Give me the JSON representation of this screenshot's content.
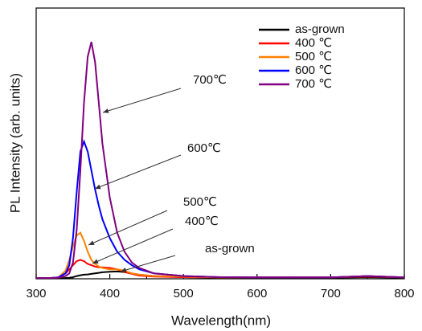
{
  "chart_data": {
    "type": "line",
    "x_label": "Wavelength(nm)",
    "y_label": "PL Intensity (arb. units)",
    "x": [
      300,
      320,
      330,
      340,
      345,
      350,
      355,
      360,
      365,
      370,
      375,
      380,
      385,
      390,
      400,
      410,
      420,
      430,
      440,
      460,
      500,
      550,
      600,
      700,
      750,
      800
    ],
    "series": [
      {
        "name": "as-grown",
        "color": "#000000",
        "values": [
          0.2,
          0.2,
          0.2,
          0.3,
          0.4,
          0.6,
          1,
          1.3,
          1.5,
          1.6,
          1.8,
          2,
          2.2,
          2.4,
          2.6,
          2.7,
          2.5,
          2,
          1.5,
          1,
          0.6,
          0.4,
          0.4,
          0.4,
          0.6,
          0.4
        ]
      },
      {
        "name": "400 ℃",
        "color": "#ff0000",
        "values": [
          0.3,
          0.3,
          0.5,
          2,
          3.5,
          5,
          6.5,
          7,
          6.5,
          5.5,
          5,
          4.5,
          4.2,
          4.2,
          4,
          3.5,
          2.5,
          1.8,
          1.2,
          0.8,
          0.6,
          0.5,
          0.5,
          0.5,
          0.8,
          0.5
        ]
      },
      {
        "name": "500 ℃",
        "color": "#ff8000",
        "values": [
          0.3,
          0.3,
          0.5,
          3,
          7,
          12,
          16,
          17,
          14,
          10,
          7,
          5.5,
          4.5,
          4,
          3.5,
          3.5,
          3,
          2,
          1.5,
          1,
          0.8,
          0.5,
          0.5,
          0.5,
          1,
          0.5
        ]
      },
      {
        "name": "600 ℃",
        "color": "#0000ff",
        "values": [
          0.3,
          0.3,
          0.5,
          2,
          5,
          15,
          32,
          47,
          50.7,
          47,
          40,
          33,
          27,
          22,
          15,
          10,
          7,
          5,
          3.5,
          2,
          1,
          0.6,
          0.5,
          0.5,
          1,
          0.5
        ]
      },
      {
        "name": "700 ℃",
        "color": "#800080",
        "values": [
          0.3,
          0.3,
          0.4,
          1,
          2,
          6,
          18,
          40,
          65,
          82,
          87.5,
          80,
          65,
          50,
          30,
          17,
          10,
          6,
          4,
          2,
          1,
          0.6,
          0.5,
          0.5,
          1,
          0.5
        ]
      }
    ],
    "annotations": [
      "700℃",
      "600℃",
      "500℃",
      "400℃",
      "as-grown"
    ],
    "xlim": [
      300,
      800
    ],
    "xticks": [
      300,
      400,
      500,
      600,
      700,
      800
    ],
    "ylim": [
      0,
      100
    ],
    "grid": false,
    "legend": "upper-right"
  }
}
